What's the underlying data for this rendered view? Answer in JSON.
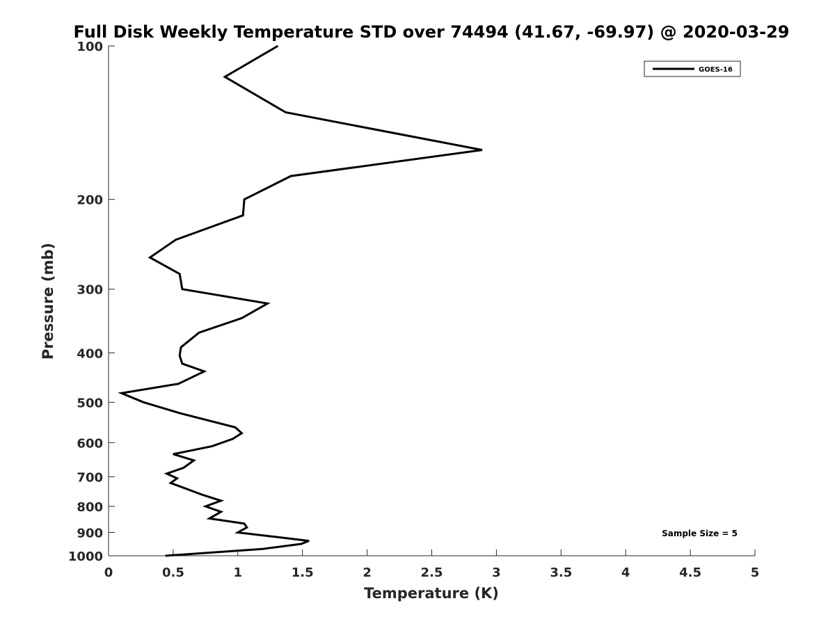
{
  "chart_data": {
    "type": "line",
    "title": "Full Disk Weekly Temperature STD over 74494 (41.67, -69.97) @ 2020-03-29",
    "xlabel": "Temperature (K)",
    "ylabel": "Pressure (mb)",
    "xlim": [
      0,
      5
    ],
    "ylim": [
      100,
      1000
    ],
    "y_scale": "log",
    "y_reversed": true,
    "x_ticks": [
      "0",
      "0.5",
      "1",
      "1.5",
      "2",
      "2.5",
      "3",
      "3.5",
      "4",
      "4.5",
      "5"
    ],
    "y_ticks": [
      "100",
      "200",
      "300",
      "400",
      "500",
      "600",
      "700",
      "800",
      "900",
      "1000"
    ],
    "grid": false,
    "legend_position": "top-right",
    "series": [
      {
        "name": "GOES-16",
        "color": "#000000",
        "points": [
          [
            1.31,
            100
          ],
          [
            0.9,
            115
          ],
          [
            1.37,
            135
          ],
          [
            2.89,
            160
          ],
          [
            1.41,
            180
          ],
          [
            1.05,
            200
          ],
          [
            1.04,
            215
          ],
          [
            0.52,
            240
          ],
          [
            0.32,
            260
          ],
          [
            0.55,
            280
          ],
          [
            0.57,
            300
          ],
          [
            1.23,
            320
          ],
          [
            1.03,
            342
          ],
          [
            0.7,
            365
          ],
          [
            0.56,
            390
          ],
          [
            0.55,
            405
          ],
          [
            0.57,
            420
          ],
          [
            0.74,
            435
          ],
          [
            0.54,
            460
          ],
          [
            0.1,
            480
          ],
          [
            0.27,
            500
          ],
          [
            0.55,
            525
          ],
          [
            0.98,
            560
          ],
          [
            1.03,
            575
          ],
          [
            0.96,
            590
          ],
          [
            0.8,
            610
          ],
          [
            0.5,
            632
          ],
          [
            0.66,
            650
          ],
          [
            0.58,
            672
          ],
          [
            0.45,
            690
          ],
          [
            0.53,
            705
          ],
          [
            0.48,
            720
          ],
          [
            0.73,
            760
          ],
          [
            0.87,
            780
          ],
          [
            0.75,
            800
          ],
          [
            0.87,
            820
          ],
          [
            0.78,
            845
          ],
          [
            1.05,
            865
          ],
          [
            1.07,
            880
          ],
          [
            1.0,
            900
          ],
          [
            1.32,
            920
          ],
          [
            1.55,
            935
          ],
          [
            1.49,
            948
          ],
          [
            1.19,
            970
          ],
          [
            0.44,
            1000
          ]
        ]
      }
    ],
    "annotation": "Sample Size = 5"
  }
}
